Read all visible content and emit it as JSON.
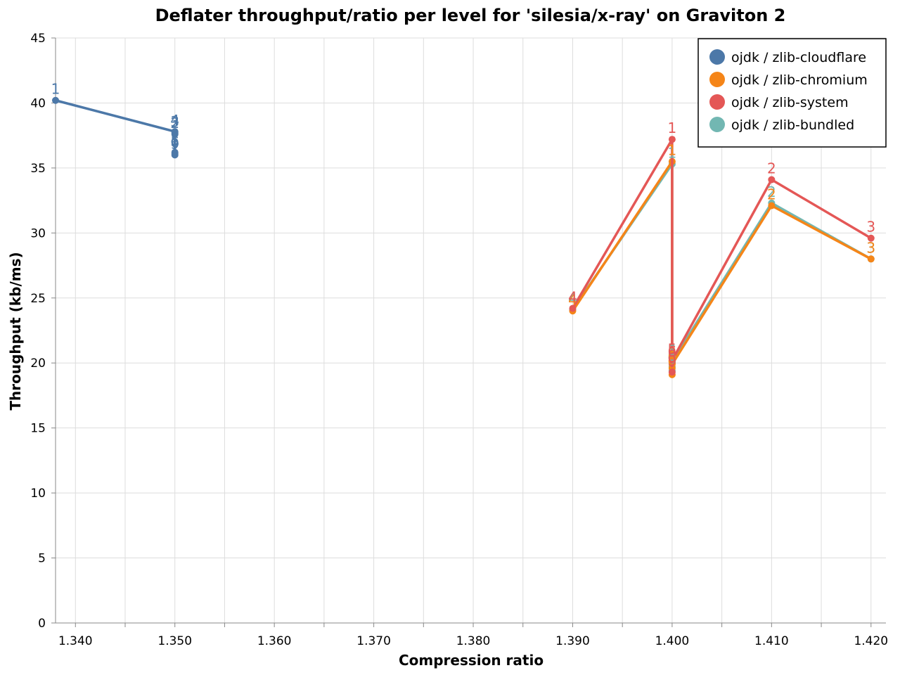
{
  "chart_data": {
    "type": "line",
    "title": "Deflater throughput/ratio per level for 'silesia/x-ray' on Graviton 2",
    "xlabel": "Compression ratio",
    "ylabel": "Throughput (kb/ms)",
    "xlim": [
      1.338,
      1.4215
    ],
    "ylim": [
      0,
      45
    ],
    "x_ticks": [
      "1.340",
      "1.350",
      "1.360",
      "1.370",
      "1.380",
      "1.390",
      "1.400",
      "1.410",
      "1.420"
    ],
    "x_tick_values": [
      1.34,
      1.35,
      1.36,
      1.37,
      1.38,
      1.39,
      1.4,
      1.41,
      1.42
    ],
    "y_ticks": [
      "0",
      "5",
      "10",
      "15",
      "20",
      "25",
      "30",
      "35",
      "40",
      "45"
    ],
    "y_tick_values": [
      0,
      5,
      10,
      15,
      20,
      25,
      30,
      35,
      40,
      45
    ],
    "grid": true,
    "legend_position": "top-right",
    "series": [
      {
        "name": "ojdk / zlib-cloudflare",
        "color": "#4c78a8",
        "points": [
          {
            "x": 1.338,
            "y": 40.2,
            "label": "1"
          },
          {
            "x": 1.35,
            "y": 37.8,
            "label": "4"
          },
          {
            "x": 1.35,
            "y": 37.7,
            "label": "3"
          },
          {
            "x": 1.35,
            "y": 37.6,
            "label": "2"
          },
          {
            "x": 1.35,
            "y": 36.2,
            "label": "5"
          },
          {
            "x": 1.35,
            "y": 36.1,
            "label": "6"
          },
          {
            "x": 1.35,
            "y": 36.0,
            "label": "9"
          }
        ]
      },
      {
        "name": "ojdk / zlib-bundled",
        "color": "#72b7b2",
        "points": [
          {
            "x": 1.39,
            "y": 24.1,
            "label": "4"
          },
          {
            "x": 1.4,
            "y": 35.3,
            "label": "1"
          },
          {
            "x": 1.4,
            "y": 19.4,
            "label": "9"
          },
          {
            "x": 1.4,
            "y": 19.7,
            "label": "6"
          },
          {
            "x": 1.4,
            "y": 20.1,
            "label": "5"
          },
          {
            "x": 1.41,
            "y": 32.3,
            "label": "2"
          },
          {
            "x": 1.42,
            "y": 28.0,
            "label": "3"
          }
        ]
      },
      {
        "name": "ojdk / zlib-chromium",
        "color": "#f58518",
        "points": [
          {
            "x": 1.39,
            "y": 24.0,
            "label": "4"
          },
          {
            "x": 1.4,
            "y": 35.5,
            "label": "1"
          },
          {
            "x": 1.4,
            "y": 19.1,
            "label": "9"
          },
          {
            "x": 1.4,
            "y": 19.6,
            "label": "6"
          },
          {
            "x": 1.4,
            "y": 19.9,
            "label": "5"
          },
          {
            "x": 1.41,
            "y": 32.1,
            "label": "2"
          },
          {
            "x": 1.42,
            "y": 28.0,
            "label": "3"
          }
        ]
      },
      {
        "name": "ojdk / zlib-system",
        "color": "#e45756",
        "points": [
          {
            "x": 1.39,
            "y": 24.2,
            "label": "4"
          },
          {
            "x": 1.4,
            "y": 37.2,
            "label": "1"
          },
          {
            "x": 1.4,
            "y": 19.3,
            "label": "9"
          },
          {
            "x": 1.4,
            "y": 20.0,
            "label": "6"
          },
          {
            "x": 1.4,
            "y": 20.2,
            "label": "5"
          },
          {
            "x": 1.41,
            "y": 34.1,
            "label": "2"
          },
          {
            "x": 1.42,
            "y": 29.6,
            "label": "3"
          }
        ]
      }
    ],
    "legend_order": [
      "ojdk / zlib-cloudflare",
      "ojdk / zlib-chromium",
      "ojdk / zlib-system",
      "ojdk / zlib-bundled"
    ]
  }
}
